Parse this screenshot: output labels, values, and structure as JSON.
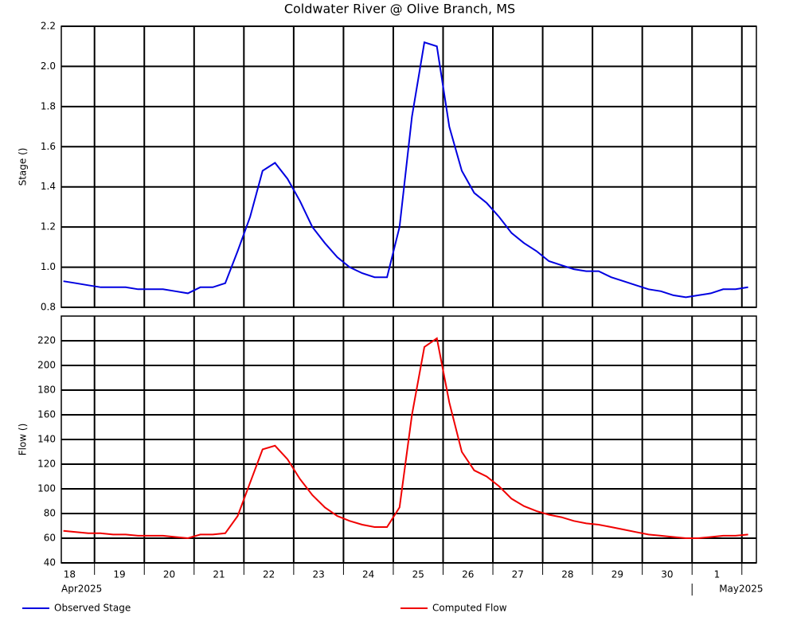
{
  "chart_data": {
    "type": "line",
    "title": "Coldwater River @ Olive Branch, MS",
    "x": [
      "2025-04-18T09:00",
      "2025-04-18T15:00",
      "2025-04-18T21:00",
      "2025-04-19T03:00",
      "2025-04-19T09:00",
      "2025-04-19T15:00",
      "2025-04-19T21:00",
      "2025-04-20T03:00",
      "2025-04-20T09:00",
      "2025-04-20T15:00",
      "2025-04-20T21:00",
      "2025-04-21T03:00",
      "2025-04-21T09:00",
      "2025-04-21T15:00",
      "2025-04-21T21:00",
      "2025-04-22T03:00",
      "2025-04-22T09:00",
      "2025-04-22T15:00",
      "2025-04-22T21:00",
      "2025-04-23T03:00",
      "2025-04-23T09:00",
      "2025-04-23T15:00",
      "2025-04-23T21:00",
      "2025-04-24T03:00",
      "2025-04-24T09:00",
      "2025-04-24T15:00",
      "2025-04-24T21:00",
      "2025-04-25T03:00",
      "2025-04-25T09:00",
      "2025-04-25T15:00",
      "2025-04-25T21:00",
      "2025-04-26T03:00",
      "2025-04-26T09:00",
      "2025-04-26T15:00",
      "2025-04-26T21:00",
      "2025-04-27T03:00",
      "2025-04-27T09:00",
      "2025-04-27T15:00",
      "2025-04-27T21:00",
      "2025-04-28T03:00",
      "2025-04-28T09:00",
      "2025-04-28T15:00",
      "2025-04-28T21:00",
      "2025-04-29T03:00",
      "2025-04-29T09:00",
      "2025-04-29T15:00",
      "2025-04-29T21:00",
      "2025-04-30T03:00",
      "2025-04-30T09:00",
      "2025-04-30T15:00",
      "2025-04-30T21:00",
      "2025-05-01T03:00",
      "2025-05-01T09:00",
      "2025-05-01T15:00",
      "2025-05-01T21:00",
      "2025-05-02T03:00"
    ],
    "xlim": [
      "2025-04-18T08:00",
      "2025-05-02T07:00"
    ],
    "xticks": [
      {
        "value": "2025-04-18T12:00",
        "label": "18"
      },
      {
        "value": "2025-04-19T12:00",
        "label": "19"
      },
      {
        "value": "2025-04-20T12:00",
        "label": "20"
      },
      {
        "value": "2025-04-21T12:00",
        "label": "21"
      },
      {
        "value": "2025-04-22T12:00",
        "label": "22"
      },
      {
        "value": "2025-04-23T12:00",
        "label": "23"
      },
      {
        "value": "2025-04-24T12:00",
        "label": "24"
      },
      {
        "value": "2025-04-25T12:00",
        "label": "25"
      },
      {
        "value": "2025-04-26T12:00",
        "label": "26"
      },
      {
        "value": "2025-04-27T12:00",
        "label": "27"
      },
      {
        "value": "2025-04-28T12:00",
        "label": "28"
      },
      {
        "value": "2025-04-29T12:00",
        "label": "29"
      },
      {
        "value": "2025-04-30T12:00",
        "label": "30"
      },
      {
        "value": "2025-05-01T12:00",
        "label": "1"
      }
    ],
    "xgrid": [
      "2025-04-19T00:00",
      "2025-04-20T00:00",
      "2025-04-21T00:00",
      "2025-04-22T00:00",
      "2025-04-23T00:00",
      "2025-04-24T00:00",
      "2025-04-25T00:00",
      "2025-04-26T00:00",
      "2025-04-27T00:00",
      "2025-04-28T00:00",
      "2025-04-29T00:00",
      "2025-04-30T00:00",
      "2025-05-01T00:00",
      "2025-05-02T00:00"
    ],
    "xmonths": [
      {
        "value": "2025-04-18T08:00",
        "label": "Apr2025"
      },
      {
        "value": "2025-05-01T00:00",
        "label": "May2025"
      }
    ],
    "grid": true,
    "panels": [
      {
        "ylabel": "Stage ()",
        "ylim": [
          0.8,
          2.2
        ],
        "yticks": [
          0.8,
          {
            "value": 1,
            "label": "1.0"
          },
          1.2,
          1.4,
          1.6,
          1.8,
          {
            "value": 2,
            "label": "2.0"
          },
          2.2
        ],
        "series": [
          {
            "name": "Observed Stage",
            "color": "#0000e0",
            "values": [
              0.93,
              0.92,
              0.91,
              0.9,
              0.9,
              0.9,
              0.89,
              0.89,
              0.89,
              0.88,
              0.87,
              0.9,
              0.9,
              0.92,
              1.08,
              1.25,
              1.48,
              1.52,
              1.44,
              1.33,
              1.2,
              1.12,
              1.05,
              1.0,
              0.97,
              0.95,
              0.95,
              1.2,
              1.75,
              2.12,
              2.1,
              1.7,
              1.48,
              1.37,
              1.32,
              1.25,
              1.17,
              1.12,
              1.08,
              1.03,
              1.01,
              0.99,
              0.98,
              0.98,
              0.95,
              0.93,
              0.91,
              0.89,
              0.88,
              0.86,
              0.85,
              0.86,
              0.87,
              0.89,
              0.89,
              0.9
            ]
          }
        ]
      },
      {
        "ylabel": "Flow ()",
        "ylim": [
          40,
          240
        ],
        "yticks": [
          40,
          60,
          80,
          100,
          120,
          140,
          160,
          180,
          200,
          220
        ],
        "series": [
          {
            "name": "Computed Flow",
            "color": "#f00000",
            "values": [
              66,
              65,
              64,
              64,
              63,
              63,
              62,
              62,
              62,
              61,
              60,
              63,
              63,
              64,
              78,
              105,
              132,
              135,
              124,
              108,
              95,
              85,
              78,
              74,
              71,
              69,
              69,
              85,
              160,
              215,
              222,
              170,
              130,
              115,
              110,
              102,
              92,
              86,
              82,
              79,
              77,
              74,
              72,
              71,
              69,
              67,
              65,
              63,
              62,
              61,
              60,
              60,
              61,
              62,
              62,
              63
            ]
          }
        ]
      }
    ]
  }
}
